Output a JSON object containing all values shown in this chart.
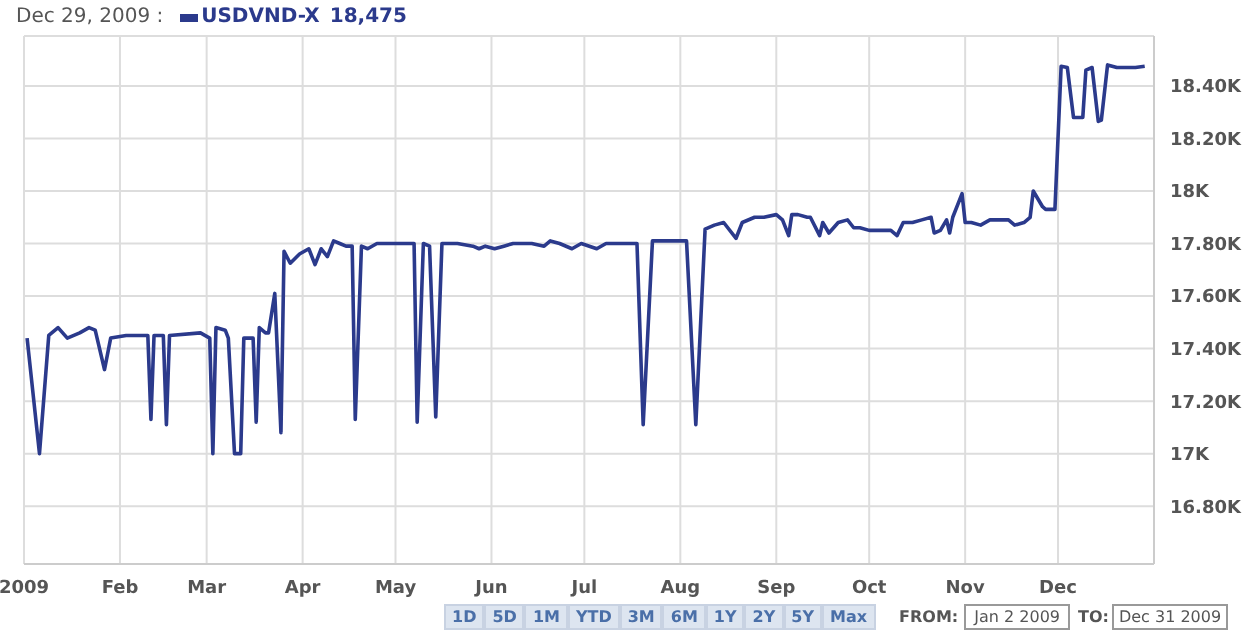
{
  "chart_data": {
    "type": "line",
    "x": [
      "2009-01-02",
      "2009-01-06",
      "2009-01-09",
      "2009-01-12",
      "2009-01-15",
      "2009-01-19",
      "2009-01-22",
      "2009-01-24",
      "2009-01-27",
      "2009-01-29",
      "2009-02-03",
      "2009-02-10",
      "2009-02-11",
      "2009-02-12",
      "2009-02-15",
      "2009-02-16",
      "2009-02-17",
      "2009-02-27",
      "2009-03-02",
      "2009-03-03",
      "2009-03-04",
      "2009-03-07",
      "2009-03-08",
      "2009-03-10",
      "2009-03-12",
      "2009-03-13",
      "2009-03-16",
      "2009-03-17",
      "2009-03-18",
      "2009-03-20",
      "2009-03-21",
      "2009-03-23",
      "2009-03-25",
      "2009-03-26",
      "2009-03-28",
      "2009-03-31",
      "2009-04-03",
      "2009-04-05",
      "2009-04-07",
      "2009-04-09",
      "2009-04-11",
      "2009-04-13",
      "2009-04-15",
      "2009-04-17",
      "2009-04-18",
      "2009-04-20",
      "2009-04-22",
      "2009-04-25",
      "2009-04-30",
      "2009-05-05",
      "2009-05-07",
      "2009-05-08",
      "2009-05-10",
      "2009-05-12",
      "2009-05-14",
      "2009-05-16",
      "2009-05-21",
      "2009-05-26",
      "2009-05-28",
      "2009-05-30",
      "2009-06-02",
      "2009-06-05",
      "2009-06-08",
      "2009-06-14",
      "2009-06-18",
      "2009-06-20",
      "2009-06-23",
      "2009-06-27",
      "2009-06-30",
      "2009-07-05",
      "2009-07-08",
      "2009-07-18",
      "2009-07-20",
      "2009-07-23",
      "2009-07-29",
      "2009-08-03",
      "2009-08-06",
      "2009-08-09",
      "2009-08-12",
      "2009-08-15",
      "2009-08-19",
      "2009-08-21",
      "2009-08-25",
      "2009-08-28",
      "2009-09-01",
      "2009-09-03",
      "2009-09-05",
      "2009-09-06",
      "2009-09-08",
      "2009-09-11",
      "2009-09-12",
      "2009-09-15",
      "2009-09-16",
      "2009-09-18",
      "2009-09-21",
      "2009-09-24",
      "2009-09-26",
      "2009-09-28",
      "2009-10-01",
      "2009-10-04",
      "2009-10-08",
      "2009-10-10",
      "2009-10-12",
      "2009-10-15",
      "2009-10-18",
      "2009-10-21",
      "2009-10-22",
      "2009-10-24",
      "2009-10-26",
      "2009-10-27",
      "2009-10-28",
      "2009-10-31",
      "2009-11-01",
      "2009-11-03",
      "2009-11-06",
      "2009-11-09",
      "2009-11-15",
      "2009-11-17",
      "2009-11-20",
      "2009-11-22",
      "2009-11-23",
      "2009-11-26",
      "2009-11-27",
      "2009-11-30",
      "2009-12-02",
      "2009-12-04",
      "2009-12-06",
      "2009-12-09",
      "2009-12-10",
      "2009-12-12",
      "2009-12-14",
      "2009-12-15",
      "2009-12-17",
      "2009-12-20",
      "2009-12-26",
      "2009-12-29"
    ],
    "series": [
      {
        "name": "USDVND-X",
        "color": "#2b3a8c",
        "values": [
          17440,
          17000,
          17450,
          17480,
          17440,
          17460,
          17480,
          17470,
          17320,
          17440,
          17450,
          17450,
          17130,
          17450,
          17450,
          17110,
          17450,
          17460,
          17440,
          17000,
          17480,
          17470,
          17440,
          17000,
          17000,
          17440,
          17440,
          17120,
          17480,
          17460,
          17460,
          17610,
          17080,
          17770,
          17725,
          17760,
          17780,
          17720,
          17780,
          17750,
          17810,
          17800,
          17790,
          17790,
          17130,
          17790,
          17780,
          17800,
          17800,
          17800,
          17800,
          17120,
          17800,
          17790,
          17140,
          17800,
          17800,
          17790,
          17780,
          17790,
          17780,
          17790,
          17800,
          17800,
          17790,
          17810,
          17800,
          17780,
          17800,
          17780,
          17800,
          17800,
          17110,
          17810,
          17810,
          17810,
          17110,
          17855,
          17870,
          17880,
          17820,
          17880,
          17900,
          17900,
          17910,
          17890,
          17830,
          17910,
          17910,
          17900,
          17900,
          17830,
          17880,
          17840,
          17880,
          17890,
          17860,
          17860,
          17850,
          17850,
          17850,
          17830,
          17880,
          17880,
          17890,
          17900,
          17840,
          17850,
          17890,
          17840,
          17900,
          17990,
          17880,
          17880,
          17870,
          17890,
          17890,
          17870,
          17880,
          17900,
          18000,
          17940,
          17930,
          17930,
          18475,
          18470,
          18280,
          18280,
          18460,
          18470,
          18265,
          18270,
          18480,
          18470,
          18470,
          18475
        ]
      }
    ],
    "xlim": [
      "2009-01-01",
      "2010-01-01"
    ],
    "xticks": [
      {
        "value": "2009-01-01",
        "label": "2009"
      },
      {
        "value": "2009-02-01",
        "label": "Feb"
      },
      {
        "value": "2009-03-01",
        "label": "Mar"
      },
      {
        "value": "2009-04-01",
        "label": "Apr"
      },
      {
        "value": "2009-05-01",
        "label": "May"
      },
      {
        "value": "2009-06-01",
        "label": "Jun"
      },
      {
        "value": "2009-07-01",
        "label": "Jul"
      },
      {
        "value": "2009-08-01",
        "label": "Aug"
      },
      {
        "value": "2009-09-01",
        "label": "Sep"
      },
      {
        "value": "2009-10-01",
        "label": "Oct"
      },
      {
        "value": "2009-11-01",
        "label": "Nov"
      },
      {
        "value": "2009-12-01",
        "label": "Dec"
      }
    ],
    "ylim": [
      16580,
      18590
    ],
    "yticks": [
      {
        "value": 16800,
        "label": "16.80K"
      },
      {
        "value": 17000,
        "label": "17K"
      },
      {
        "value": 17200,
        "label": "17.20K"
      },
      {
        "value": 17400,
        "label": "17.40K"
      },
      {
        "value": 17600,
        "label": "17.60K"
      },
      {
        "value": 17800,
        "label": "17.80K"
      },
      {
        "value": 18000,
        "label": "18K"
      },
      {
        "value": 18200,
        "label": "18.20K"
      },
      {
        "value": 18400,
        "label": "18.40K"
      }
    ],
    "grid": true,
    "legend": "top left",
    "marker": "none",
    "line_style": "solid",
    "annotations": [
      "Dec 29, 2009 :",
      "18,475",
      "1D",
      "5D",
      "1M",
      "YTD",
      "3M",
      "6M",
      "1Y",
      "2Y",
      "5Y",
      "Max",
      "FROM:",
      "Jan 2 2009",
      "TO:",
      "Dec 31 2009"
    ]
  }
}
